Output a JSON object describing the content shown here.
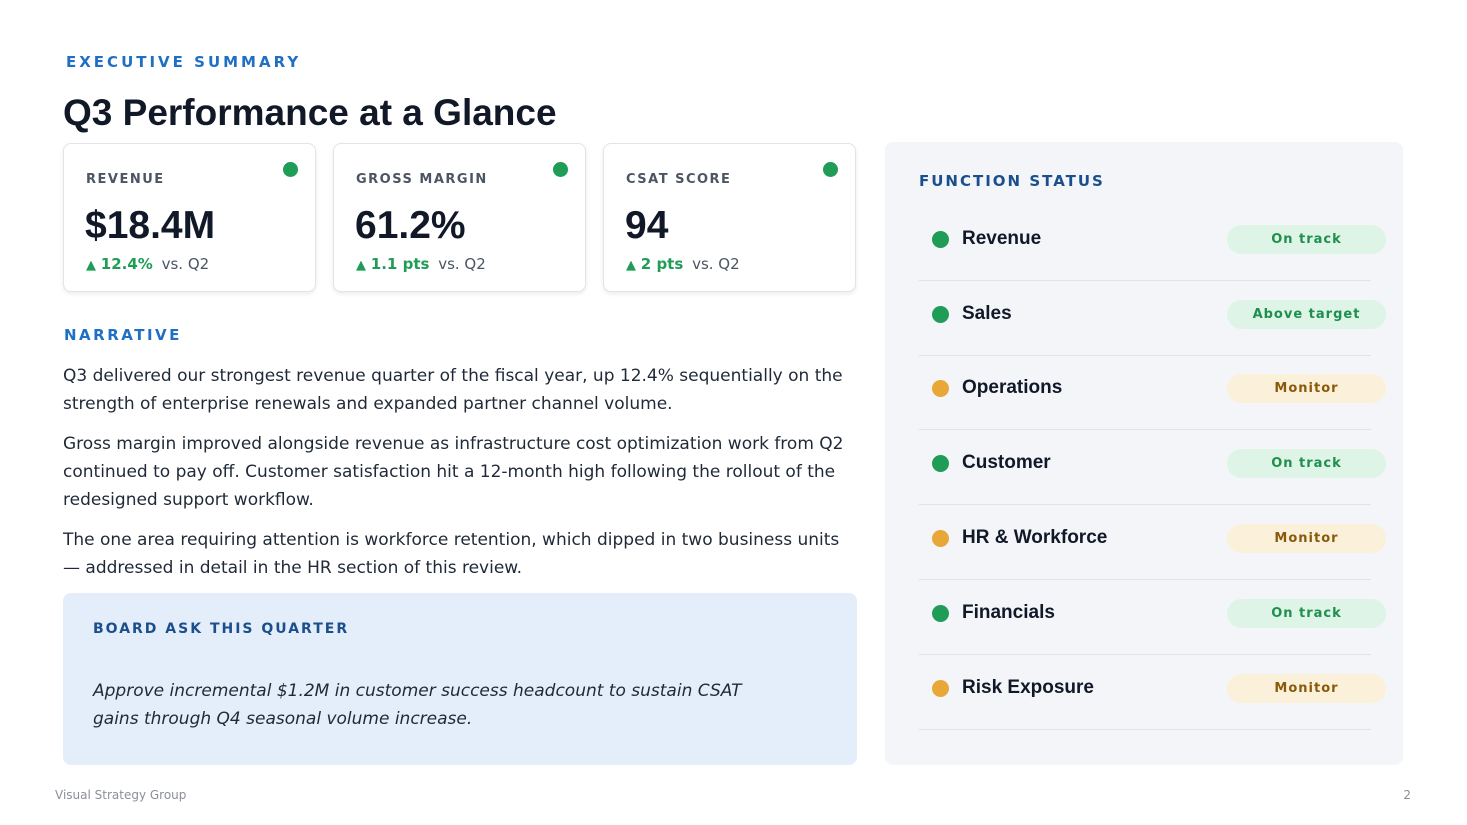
{
  "header": {
    "eyebrow": "EXECUTIVE SUMMARY",
    "title": "Q3 Performance at a Glance"
  },
  "kpis": [
    {
      "label": "REVENUE",
      "value": "$18.4M",
      "arrow": "▲",
      "delta": "12.4%",
      "vs": "vs. Q2"
    },
    {
      "label": "GROSS MARGIN",
      "value": "61.2%",
      "arrow": "▲",
      "delta": "1.1 pts",
      "vs": "vs. Q2"
    },
    {
      "label": "CSAT SCORE",
      "value": "94",
      "arrow": "▲",
      "delta": "2 pts",
      "vs": "vs. Q2"
    }
  ],
  "narrative": {
    "label": "NARRATIVE",
    "paragraphs": [
      "Q3 delivered our strongest revenue quarter of the fiscal year, up 12.4% sequentially on the strength of enterprise renewals and expanded partner channel volume.",
      "Gross margin improved alongside revenue as infrastructure cost optimization work from Q2 continued to pay off. Customer satisfaction hit a 12-month high following the rollout of the redesigned support workflow.",
      "The one area requiring attention is workforce retention, which dipped in two business units — addressed in detail in the HR section of this review."
    ]
  },
  "board_ask": {
    "title": "BOARD ASK THIS QUARTER",
    "text": "Approve incremental $1.2M in customer success headcount to sustain CSAT gains through Q4 seasonal volume increase."
  },
  "status": {
    "title": "FUNCTION STATUS",
    "colors": {
      "green": "#1f9d57",
      "amber": "#e8a838"
    },
    "rows": [
      {
        "name": "Revenue",
        "badge": "On track",
        "tone": "green"
      },
      {
        "name": "Sales",
        "badge": "Above target",
        "tone": "green"
      },
      {
        "name": "Operations",
        "badge": "Monitor",
        "tone": "amber"
      },
      {
        "name": "Customer",
        "badge": "On track",
        "tone": "green"
      },
      {
        "name": "HR & Workforce",
        "badge": "Monitor",
        "tone": "amber"
      },
      {
        "name": "Financials",
        "badge": "On track",
        "tone": "green"
      },
      {
        "name": "Risk Exposure",
        "badge": "Monitor",
        "tone": "amber"
      }
    ]
  },
  "footer": {
    "company": "Visual Strategy Group",
    "page_number": "2"
  }
}
